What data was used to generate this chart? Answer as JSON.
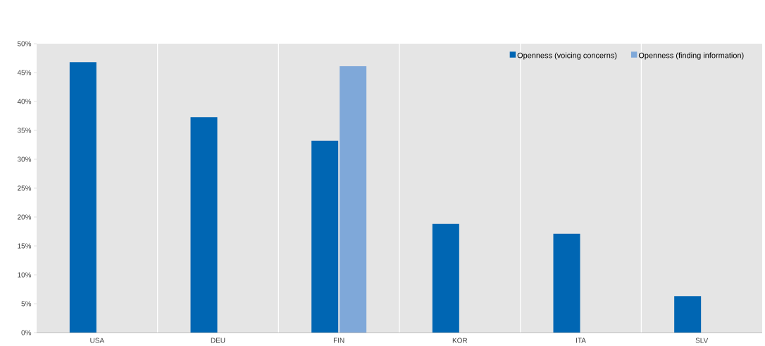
{
  "chart_data": {
    "type": "bar",
    "categories": [
      "USA",
      "DEU",
      "FIN",
      "KOR",
      "ITA",
      "SLV"
    ],
    "series": [
      {
        "name": "Openness (voicing concerns)",
        "color": "#0066b3",
        "values": [
          46.8,
          37.3,
          33.2,
          18.8,
          17.1,
          6.3
        ]
      },
      {
        "name": "Openness (finding information)",
        "color": "#7fa8d9",
        "values": [
          null,
          null,
          46.1,
          null,
          null,
          null
        ]
      }
    ],
    "ylim": [
      0,
      50
    ],
    "yticks": [
      {
        "value": 0,
        "label": "0%"
      },
      {
        "value": 5,
        "label": "5%"
      },
      {
        "value": 10,
        "label": "10%"
      },
      {
        "value": 15,
        "label": "15%"
      },
      {
        "value": 20,
        "label": "20%"
      },
      {
        "value": 25,
        "label": "25%"
      },
      {
        "value": 30,
        "label": "30%"
      },
      {
        "value": 35,
        "label": "35%"
      },
      {
        "value": 40,
        "label": "40%"
      },
      {
        "value": 45,
        "label": "45%"
      },
      {
        "value": 50,
        "label": "50%"
      }
    ],
    "grid": "x",
    "legend": "top"
  }
}
